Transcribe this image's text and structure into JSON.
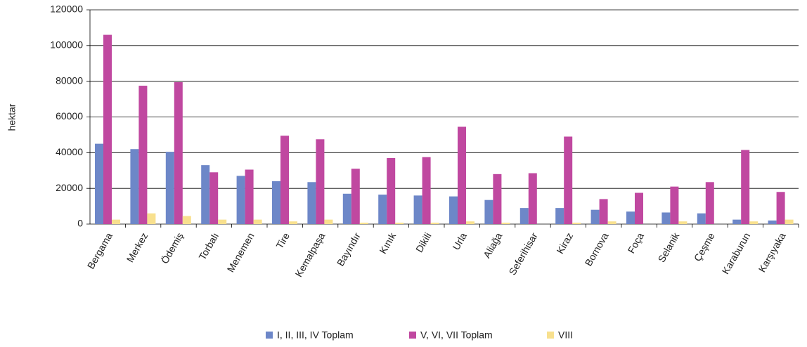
{
  "chart_data": {
    "type": "bar",
    "ylabel": "hektar",
    "categories": [
      "Bergama",
      "Merkez",
      "Ödemiş",
      "Torbalı",
      "Menemen",
      "Tire",
      "Kemalpaşa",
      "Bayındır",
      "Kınık",
      "Dikili",
      "Urla",
      "Aliağa",
      "Seferihisar",
      "Kiraz",
      "Bornova",
      "Foça",
      "Selanik",
      "Çeşme",
      "Karaburun",
      "Karşıyaka"
    ],
    "series": [
      {
        "name": "I, II, III, IV Toplam",
        "color": "#6d87c8",
        "values": [
          45000,
          42000,
          40500,
          33000,
          27000,
          24000,
          23500,
          17000,
          16500,
          16000,
          15500,
          13500,
          9000,
          9000,
          8000,
          7000,
          6500,
          6000,
          2500,
          2000
        ]
      },
      {
        "name": "V, VI, VII Toplam",
        "color": "#c048a0",
        "values": [
          106000,
          77500,
          79500,
          29000,
          30500,
          49500,
          47500,
          31000,
          37000,
          37500,
          54500,
          28000,
          28500,
          49000,
          14000,
          17500,
          21000,
          23500,
          41500,
          18000
        ]
      },
      {
        "name": "VIII",
        "color": "#f8e08e",
        "values": [
          2500,
          6000,
          4500,
          2500,
          2500,
          1500,
          2500,
          800,
          800,
          800,
          1500,
          800,
          0,
          800,
          1500,
          0,
          1500,
          0,
          1500,
          2500
        ]
      }
    ],
    "ylim": [
      0,
      120000
    ],
    "yticks": [
      0,
      20000,
      40000,
      60000,
      80000,
      100000,
      120000
    ],
    "grid": true,
    "legend": "bottom"
  }
}
